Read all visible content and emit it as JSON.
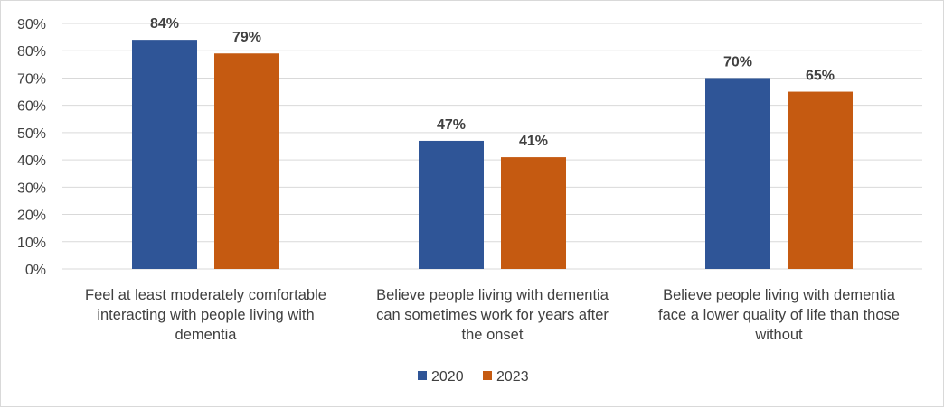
{
  "chart_data": {
    "type": "bar",
    "categories": [
      [
        "Feel at least moderately comfortable",
        "interacting with people living with",
        "dementia"
      ],
      [
        "Believe people living with dementia",
        "can sometimes work for years after",
        "the onset"
      ],
      [
        "Believe people living with dementia",
        "face a lower quality of life than those",
        "without"
      ]
    ],
    "series": [
      {
        "name": "2020",
        "values": [
          84,
          47,
          70
        ],
        "labels": [
          "84%",
          "47%",
          "70%"
        ],
        "color": "#2f5597"
      },
      {
        "name": "2023",
        "values": [
          79,
          41,
          65
        ],
        "labels": [
          "79%",
          "41%",
          "65%"
        ],
        "color": "#c55a11"
      }
    ],
    "ylim": [
      0,
      90
    ],
    "yticks": [
      "0%",
      "10%",
      "20%",
      "30%",
      "40%",
      "50%",
      "60%",
      "70%",
      "80%",
      "90%"
    ],
    "grid": true,
    "gridline_color": "#d9d9d9",
    "legend": "bottom"
  }
}
